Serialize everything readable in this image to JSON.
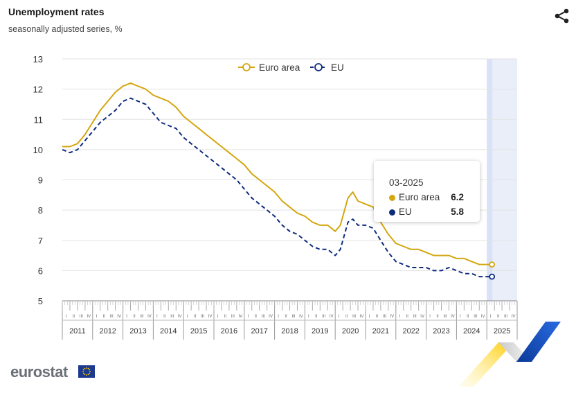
{
  "header": {
    "title": "Unemployment rates",
    "subtitle": "seasonally adjusted series, %"
  },
  "icons": {
    "share": "share-icon",
    "logo_flag": "eu-flag-icon",
    "decoration": "eurostat-chevron-icon"
  },
  "colors": {
    "euro_area": "#d4a60f",
    "eu": "#0e2c7d",
    "grid": "#e3e3e3",
    "highlight": "#e9eef9"
  },
  "tooltip": {
    "date": "03-2025",
    "rows": [
      {
        "label": "Euro area",
        "value": "6.2"
      },
      {
        "label": "EU",
        "value": "5.8"
      }
    ]
  },
  "brand": {
    "logo_text": "eurostat"
  },
  "chart_data": {
    "type": "line",
    "title": "Unemployment rates",
    "subtitle": "seasonally adjusted series, %",
    "xlabel": "",
    "ylabel": "",
    "ylim": [
      5,
      13
    ],
    "yticks": [
      "5",
      "6",
      "7",
      "8",
      "9",
      "10",
      "11",
      "12",
      "13"
    ],
    "years": [
      "2011",
      "2012",
      "2013",
      "2014",
      "2015",
      "2016",
      "2017",
      "2018",
      "2019",
      "2020",
      "2021",
      "2022",
      "2023",
      "2024",
      "2025"
    ],
    "quarters": [
      "I",
      "II",
      "III",
      "IV"
    ],
    "x_start": 2011.0,
    "x_end": 2026.0,
    "highlight_from": 2025.0,
    "legend": [
      "Euro area",
      "EU"
    ],
    "legend_position": "top-center",
    "series": [
      {
        "name": "Euro area",
        "style": "solid",
        "points": [
          [
            2011.0,
            10.1
          ],
          [
            2011.25,
            10.1
          ],
          [
            2011.5,
            10.2
          ],
          [
            2011.75,
            10.5
          ],
          [
            2012.0,
            10.9
          ],
          [
            2012.25,
            11.3
          ],
          [
            2012.5,
            11.6
          ],
          [
            2012.75,
            11.9
          ],
          [
            2013.0,
            12.1
          ],
          [
            2013.25,
            12.2
          ],
          [
            2013.5,
            12.1
          ],
          [
            2013.75,
            12.0
          ],
          [
            2014.0,
            11.8
          ],
          [
            2014.25,
            11.7
          ],
          [
            2014.5,
            11.6
          ],
          [
            2014.75,
            11.4
          ],
          [
            2015.0,
            11.1
          ],
          [
            2015.25,
            10.9
          ],
          [
            2015.5,
            10.7
          ],
          [
            2015.75,
            10.5
          ],
          [
            2016.0,
            10.3
          ],
          [
            2016.25,
            10.1
          ],
          [
            2016.5,
            9.9
          ],
          [
            2016.75,
            9.7
          ],
          [
            2017.0,
            9.5
          ],
          [
            2017.25,
            9.2
          ],
          [
            2017.5,
            9.0
          ],
          [
            2017.75,
            8.8
          ],
          [
            2018.0,
            8.6
          ],
          [
            2018.25,
            8.3
          ],
          [
            2018.5,
            8.1
          ],
          [
            2018.75,
            7.9
          ],
          [
            2019.0,
            7.8
          ],
          [
            2019.25,
            7.6
          ],
          [
            2019.5,
            7.5
          ],
          [
            2019.75,
            7.5
          ],
          [
            2020.0,
            7.3
          ],
          [
            2020.17,
            7.5
          ],
          [
            2020.42,
            8.4
          ],
          [
            2020.58,
            8.6
          ],
          [
            2020.75,
            8.3
          ],
          [
            2021.0,
            8.2
          ],
          [
            2021.25,
            8.1
          ],
          [
            2021.5,
            7.6
          ],
          [
            2021.75,
            7.2
          ],
          [
            2022.0,
            6.9
          ],
          [
            2022.25,
            6.8
          ],
          [
            2022.5,
            6.7
          ],
          [
            2022.75,
            6.7
          ],
          [
            2023.0,
            6.6
          ],
          [
            2023.25,
            6.5
          ],
          [
            2023.5,
            6.5
          ],
          [
            2023.75,
            6.5
          ],
          [
            2024.0,
            6.4
          ],
          [
            2024.25,
            6.4
          ],
          [
            2024.5,
            6.3
          ],
          [
            2024.75,
            6.2
          ],
          [
            2025.0,
            6.2
          ],
          [
            2025.17,
            6.2
          ]
        ]
      },
      {
        "name": "EU",
        "style": "dashed",
        "points": [
          [
            2011.0,
            10.0
          ],
          [
            2011.25,
            9.9
          ],
          [
            2011.5,
            10.0
          ],
          [
            2011.75,
            10.3
          ],
          [
            2012.0,
            10.6
          ],
          [
            2012.25,
            10.9
          ],
          [
            2012.5,
            11.1
          ],
          [
            2012.75,
            11.3
          ],
          [
            2013.0,
            11.6
          ],
          [
            2013.25,
            11.7
          ],
          [
            2013.5,
            11.6
          ],
          [
            2013.75,
            11.5
          ],
          [
            2014.0,
            11.2
          ],
          [
            2014.25,
            10.9
          ],
          [
            2014.5,
            10.8
          ],
          [
            2014.75,
            10.7
          ],
          [
            2015.0,
            10.4
          ],
          [
            2015.25,
            10.2
          ],
          [
            2015.5,
            10.0
          ],
          [
            2015.75,
            9.8
          ],
          [
            2016.0,
            9.6
          ],
          [
            2016.25,
            9.4
          ],
          [
            2016.5,
            9.2
          ],
          [
            2016.75,
            9.0
          ],
          [
            2017.0,
            8.7
          ],
          [
            2017.25,
            8.4
          ],
          [
            2017.5,
            8.2
          ],
          [
            2017.75,
            8.0
          ],
          [
            2018.0,
            7.8
          ],
          [
            2018.25,
            7.5
          ],
          [
            2018.5,
            7.3
          ],
          [
            2018.75,
            7.2
          ],
          [
            2019.0,
            7.0
          ],
          [
            2019.25,
            6.8
          ],
          [
            2019.5,
            6.7
          ],
          [
            2019.75,
            6.7
          ],
          [
            2020.0,
            6.5
          ],
          [
            2020.17,
            6.7
          ],
          [
            2020.42,
            7.6
          ],
          [
            2020.58,
            7.7
          ],
          [
            2020.75,
            7.5
          ],
          [
            2021.0,
            7.5
          ],
          [
            2021.25,
            7.4
          ],
          [
            2021.5,
            7.0
          ],
          [
            2021.75,
            6.6
          ],
          [
            2022.0,
            6.3
          ],
          [
            2022.25,
            6.2
          ],
          [
            2022.5,
            6.1
          ],
          [
            2022.75,
            6.1
          ],
          [
            2023.0,
            6.1
          ],
          [
            2023.25,
            6.0
          ],
          [
            2023.5,
            6.0
          ],
          [
            2023.75,
            6.1
          ],
          [
            2024.0,
            6.0
          ],
          [
            2024.25,
            5.9
          ],
          [
            2024.5,
            5.9
          ],
          [
            2024.75,
            5.8
          ],
          [
            2025.0,
            5.8
          ],
          [
            2025.17,
            5.8
          ]
        ]
      }
    ]
  }
}
